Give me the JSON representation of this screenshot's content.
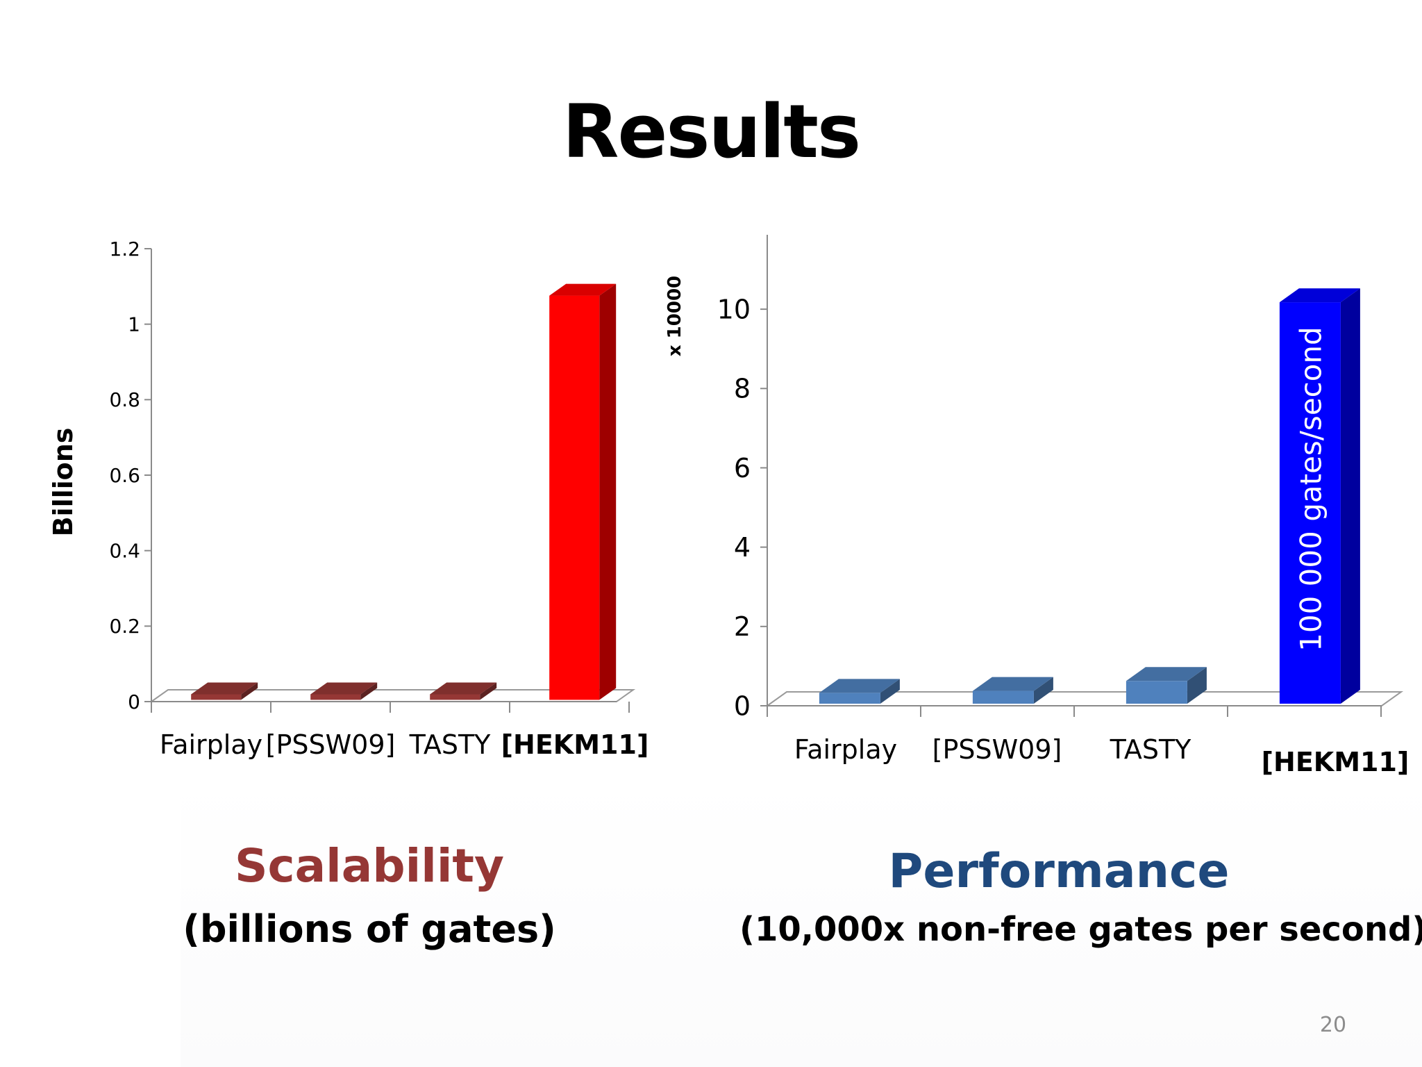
{
  "slide": {
    "title": "Results",
    "page_number": "20"
  },
  "captions": {
    "left_heading": "Scalability",
    "left_sub": "(billions of gates)",
    "right_heading": "Performance",
    "right_sub": "(10,000x non-free gates per second)"
  },
  "colors": {
    "scalability_heading": "#953735",
    "performance_heading": "#1f497d",
    "red_bar_small": "#953735",
    "red_bar_main": "#ff0000",
    "blue_bar_small": "#4f81bd",
    "blue_bar_main": "#0000ff"
  },
  "chart_data": [
    {
      "type": "bar",
      "style": "3d-column",
      "title": "",
      "categories": [
        "Fairplay",
        "[PSSW09]",
        "TASTY",
        "[HEKM11]"
      ],
      "category_bold": [
        false,
        false,
        false,
        true
      ],
      "values": [
        0.001,
        0.001,
        0.003,
        1.06
      ],
      "ylabel": "Billions",
      "xlabel": "",
      "ylim": [
        0,
        1.2
      ],
      "yticks": [
        "0",
        "0.2",
        "0.4",
        "0.6",
        "0.8",
        "1",
        "1.2"
      ],
      "bar_color_flags": [
        "small",
        "small",
        "small",
        "main"
      ],
      "grid": false,
      "legend": "none"
    },
    {
      "type": "bar",
      "style": "3d-column",
      "title": "",
      "categories": [
        "Fairplay",
        "[PSSW09]",
        "TASTY",
        "[HEKM11]"
      ],
      "category_bold": [
        false,
        false,
        false,
        true
      ],
      "values": [
        0.15,
        0.2,
        0.45,
        10
      ],
      "ylabel": "x 10000",
      "xlabel": "",
      "ylim": [
        0,
        11
      ],
      "yticks": [
        "0",
        "2",
        "4",
        "6",
        "8",
        "10"
      ],
      "bar_color_flags": [
        "small",
        "small",
        "small",
        "main"
      ],
      "bar_labels": [
        "",
        "",
        "",
        "100 000 gates/second"
      ],
      "grid": false,
      "legend": "none"
    }
  ]
}
